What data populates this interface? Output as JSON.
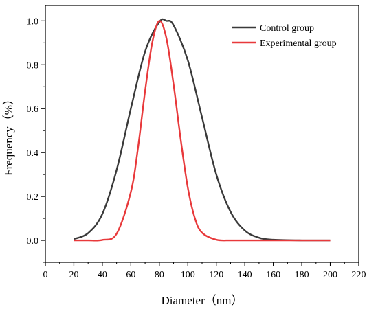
{
  "chart_data": {
    "type": "line",
    "xlabel": "Diameter（nm）",
    "ylabel": "Frequency（%）",
    "xlim": [
      0,
      220
    ],
    "ylim": [
      -0.1,
      1.07
    ],
    "xticks": [
      0,
      20,
      40,
      60,
      80,
      100,
      120,
      140,
      160,
      180,
      200,
      220
    ],
    "yticks": [
      0.0,
      0.2,
      0.4,
      0.6,
      0.8,
      1.0
    ],
    "ytick_labels": [
      "0.0",
      "0.2",
      "0.4",
      "0.6",
      "0.8",
      "1.0"
    ],
    "grid": false,
    "legend_position": "top-right",
    "series": [
      {
        "name": "Control group",
        "color": "#3a3a3a",
        "x": [
          20,
          30,
          40,
          50,
          60,
          70,
          80,
          85,
          90,
          100,
          110,
          120,
          130,
          140,
          150,
          160,
          180,
          200
        ],
        "y": [
          0.006,
          0.033,
          0.12,
          0.32,
          0.6,
          0.86,
          0.995,
          1.0,
          0.98,
          0.82,
          0.56,
          0.3,
          0.13,
          0.045,
          0.012,
          0.003,
          0.0,
          0.0
        ]
      },
      {
        "name": "Experimental group",
        "color": "#e8393b",
        "x": [
          20,
          30,
          40,
          50,
          60,
          65,
          70,
          75,
          80,
          85,
          90,
          95,
          100,
          105,
          110,
          120,
          130,
          140,
          160,
          200
        ],
        "y": [
          0.0,
          0.0,
          0.002,
          0.03,
          0.22,
          0.42,
          0.68,
          0.9,
          1.0,
          0.92,
          0.71,
          0.46,
          0.24,
          0.1,
          0.035,
          0.003,
          0.0,
          0.0,
          0.0,
          0.0
        ]
      }
    ]
  }
}
